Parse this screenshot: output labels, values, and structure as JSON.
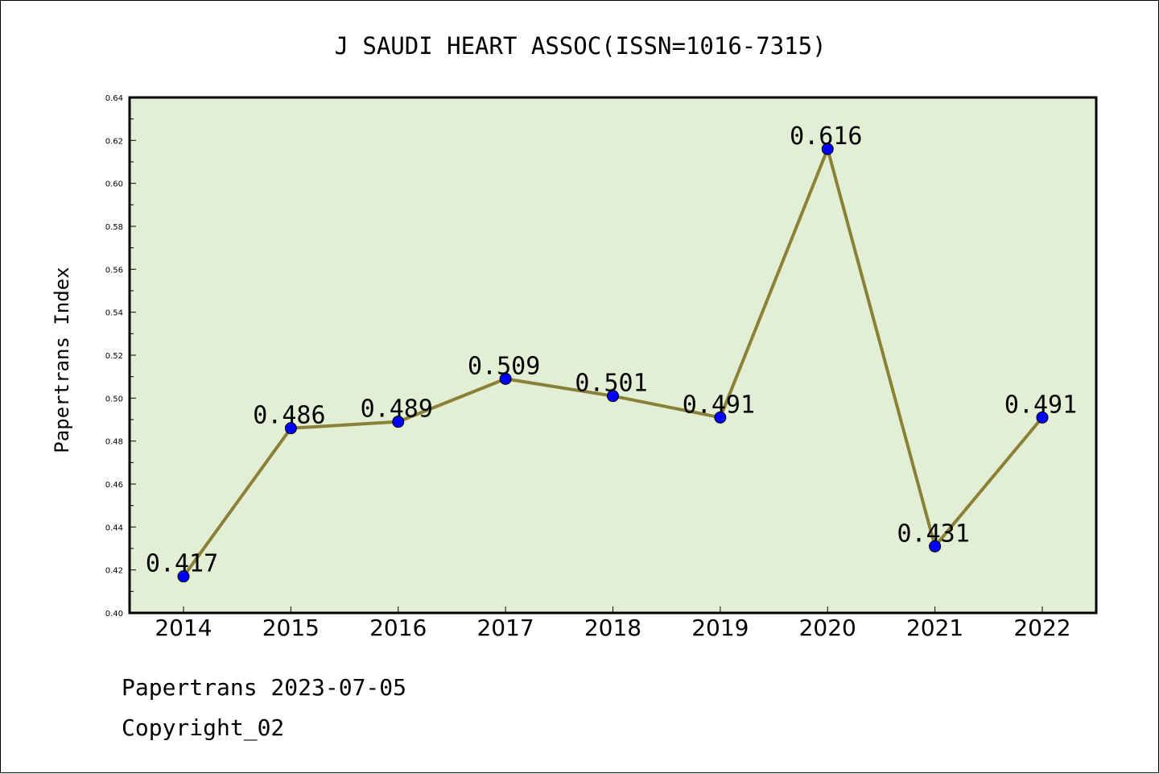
{
  "chart_data": {
    "type": "line",
    "title": "J SAUDI HEART ASSOC(ISSN=1016-7315)",
    "ylabel": "Papertrans Index",
    "xlabel": "",
    "categories": [
      "2014",
      "2015",
      "2016",
      "2017",
      "2018",
      "2019",
      "2020",
      "2021",
      "2022"
    ],
    "values": [
      0.417,
      0.486,
      0.489,
      0.509,
      0.501,
      0.491,
      0.616,
      0.431,
      0.491
    ],
    "data_labels": [
      "0.417",
      "0.486",
      "0.489",
      "0.509",
      "0.501",
      "0.491",
      "0.616",
      "0.431",
      "0.491"
    ],
    "ylim": [
      0.4,
      0.64
    ],
    "y_ticks": [
      "0.40",
      "0.42",
      "0.44",
      "0.46",
      "0.48",
      "0.50",
      "0.52",
      "0.54",
      "0.56",
      "0.58",
      "0.60",
      "0.62",
      "0.64"
    ],
    "grid": false,
    "colors": {
      "plot_background": "#e2efd4",
      "line": "#8b8038",
      "marker": "#0000ff"
    }
  },
  "footer": {
    "date_line": "Papertrans 2023-07-05",
    "copyright": "Copyright_02"
  }
}
